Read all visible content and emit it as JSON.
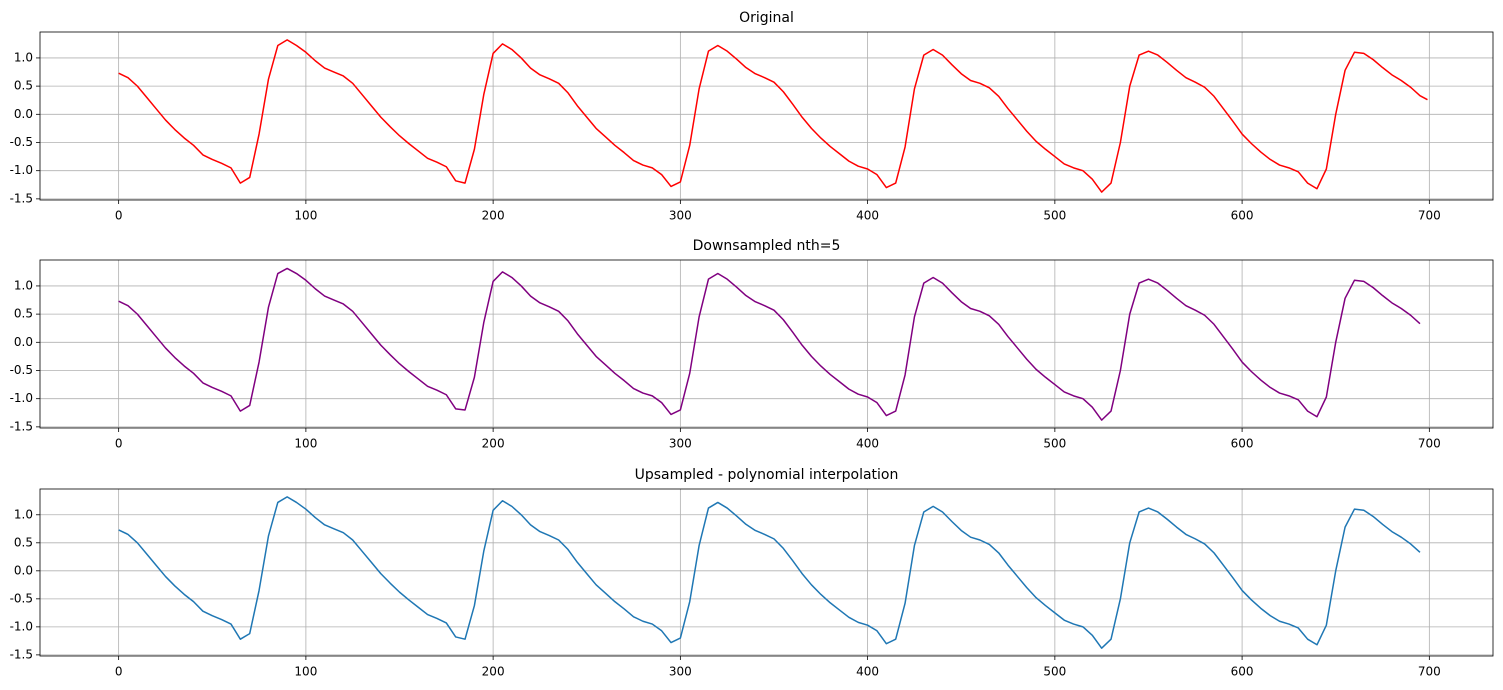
{
  "chart_data": [
    {
      "type": "line",
      "title": "Original",
      "grid": true,
      "xlim": [
        -42,
        734
      ],
      "ylim": [
        -1.52,
        1.46
      ],
      "xticks": [
        0,
        100,
        200,
        300,
        400,
        500,
        600,
        700
      ],
      "yticks": [
        {
          "value": -1.5,
          "label": "-1.5"
        },
        {
          "value": -1,
          "label": "-1.0"
        },
        {
          "value": -0.5,
          "label": "-0.5"
        },
        {
          "value": 0,
          "label": "0.0"
        },
        {
          "value": 0.5,
          "label": "0.5"
        },
        {
          "value": 1,
          "label": "1.0"
        }
      ],
      "x": [
        0,
        5,
        10,
        15,
        20,
        25,
        30,
        35,
        40,
        45,
        50,
        55,
        60,
        65,
        70,
        75,
        80,
        85,
        90,
        95,
        100,
        105,
        110,
        115,
        120,
        125,
        130,
        135,
        140,
        145,
        150,
        155,
        160,
        165,
        170,
        175,
        180,
        185,
        190,
        195,
        200,
        205,
        210,
        215,
        220,
        225,
        230,
        235,
        240,
        245,
        250,
        255,
        260,
        265,
        270,
        275,
        280,
        285,
        290,
        295,
        300,
        305,
        310,
        315,
        320,
        325,
        330,
        335,
        340,
        345,
        350,
        355,
        360,
        365,
        370,
        375,
        380,
        385,
        390,
        395,
        400,
        405,
        410,
        415,
        420,
        425,
        430,
        435,
        440,
        445,
        450,
        455,
        460,
        465,
        470,
        475,
        480,
        485,
        490,
        495,
        500,
        505,
        510,
        515,
        520,
        525,
        530,
        535,
        540,
        545,
        550,
        555,
        560,
        565,
        570,
        575,
        580,
        585,
        590,
        595,
        600,
        605,
        610,
        615,
        620,
        625,
        630,
        635,
        640,
        645,
        650,
        655,
        660,
        665,
        670,
        675,
        680,
        685,
        690,
        695,
        699
      ],
      "series": [
        {
          "name": "Original",
          "color": "#ff0000",
          "values": [
            0.73,
            0.65,
            0.5,
            0.3,
            0.1,
            -0.1,
            -0.27,
            -0.42,
            -0.55,
            -0.72,
            -0.8,
            -0.87,
            -0.95,
            -1.22,
            -1.12,
            -0.35,
            0.62,
            1.22,
            1.32,
            1.22,
            1.1,
            0.95,
            0.82,
            0.75,
            0.68,
            0.55,
            0.35,
            0.15,
            -0.05,
            -0.22,
            -0.38,
            -0.52,
            -0.65,
            -0.78,
            -0.85,
            -0.93,
            -1.18,
            -1.22,
            -0.62,
            0.35,
            1.08,
            1.25,
            1.15,
            1.0,
            0.82,
            0.7,
            0.63,
            0.55,
            0.38,
            0.15,
            -0.05,
            -0.25,
            -0.4,
            -0.55,
            -0.68,
            -0.82,
            -0.9,
            -0.95,
            -1.07,
            -1.28,
            -1.2,
            -0.55,
            0.45,
            1.12,
            1.22,
            1.12,
            0.98,
            0.83,
            0.72,
            0.65,
            0.57,
            0.4,
            0.18,
            -0.05,
            -0.25,
            -0.42,
            -0.57,
            -0.7,
            -0.83,
            -0.92,
            -0.97,
            -1.07,
            -1.3,
            -1.22,
            -0.58,
            0.45,
            1.05,
            1.15,
            1.05,
            0.88,
            0.72,
            0.6,
            0.55,
            0.47,
            0.32,
            0.1,
            -0.1,
            -0.3,
            -0.48,
            -0.62,
            -0.75,
            -0.88,
            -0.95,
            -1.0,
            -1.15,
            -1.38,
            -1.22,
            -0.5,
            0.5,
            1.05,
            1.12,
            1.05,
            0.92,
            0.78,
            0.65,
            0.57,
            0.48,
            0.32,
            0.1,
            -0.12,
            -0.35,
            -0.52,
            -0.67,
            -0.8,
            -0.9,
            -0.95,
            -1.02,
            -1.22,
            -1.32,
            -0.97,
            0.0,
            0.78,
            1.1,
            1.08,
            0.97,
            0.83,
            0.7,
            0.6,
            0.48,
            0.33,
            0.26
          ]
        }
      ]
    },
    {
      "type": "line",
      "title": "Downsampled nth=5",
      "grid": true,
      "xlim": [
        -42,
        734
      ],
      "ylim": [
        -1.52,
        1.46
      ],
      "xticks": [
        0,
        100,
        200,
        300,
        400,
        500,
        600,
        700
      ],
      "yticks": [
        {
          "value": -1.5,
          "label": "-1.5"
        },
        {
          "value": -1,
          "label": "-1.0"
        },
        {
          "value": -0.5,
          "label": "-0.5"
        },
        {
          "value": 0,
          "label": "0.0"
        },
        {
          "value": 0.5,
          "label": "0.5"
        },
        {
          "value": 1,
          "label": "1.0"
        }
      ],
      "x": [
        0,
        5,
        10,
        15,
        20,
        25,
        30,
        35,
        40,
        45,
        50,
        55,
        60,
        65,
        70,
        75,
        80,
        85,
        90,
        95,
        100,
        105,
        110,
        115,
        120,
        125,
        130,
        135,
        140,
        145,
        150,
        155,
        160,
        165,
        170,
        175,
        180,
        185,
        190,
        195,
        200,
        205,
        210,
        215,
        220,
        225,
        230,
        235,
        240,
        245,
        250,
        255,
        260,
        265,
        270,
        275,
        280,
        285,
        290,
        295,
        300,
        305,
        310,
        315,
        320,
        325,
        330,
        335,
        340,
        345,
        350,
        355,
        360,
        365,
        370,
        375,
        380,
        385,
        390,
        395,
        400,
        405,
        410,
        415,
        420,
        425,
        430,
        435,
        440,
        445,
        450,
        455,
        460,
        465,
        470,
        475,
        480,
        485,
        490,
        495,
        500,
        505,
        510,
        515,
        520,
        525,
        530,
        535,
        540,
        545,
        550,
        555,
        560,
        565,
        570,
        575,
        580,
        585,
        590,
        595,
        600,
        605,
        610,
        615,
        620,
        625,
        630,
        635,
        640,
        645,
        650,
        655,
        660,
        665,
        670,
        675,
        680,
        685,
        690,
        695
      ],
      "series": [
        {
          "name": "Downsampled",
          "color": "#800080",
          "values": [
            0.73,
            0.65,
            0.5,
            0.3,
            0.1,
            -0.1,
            -0.27,
            -0.42,
            -0.55,
            -0.72,
            -0.8,
            -0.87,
            -0.95,
            -1.22,
            -1.12,
            -0.35,
            0.62,
            1.22,
            1.31,
            1.22,
            1.1,
            0.95,
            0.82,
            0.75,
            0.68,
            0.55,
            0.35,
            0.15,
            -0.05,
            -0.22,
            -0.38,
            -0.52,
            -0.65,
            -0.78,
            -0.85,
            -0.93,
            -1.18,
            -1.2,
            -0.62,
            0.35,
            1.08,
            1.25,
            1.15,
            1.0,
            0.82,
            0.7,
            0.63,
            0.55,
            0.38,
            0.15,
            -0.05,
            -0.25,
            -0.4,
            -0.55,
            -0.68,
            -0.82,
            -0.9,
            -0.95,
            -1.07,
            -1.28,
            -1.2,
            -0.55,
            0.45,
            1.12,
            1.22,
            1.12,
            0.98,
            0.83,
            0.72,
            0.65,
            0.57,
            0.4,
            0.18,
            -0.05,
            -0.25,
            -0.42,
            -0.57,
            -0.7,
            -0.83,
            -0.92,
            -0.97,
            -1.07,
            -1.3,
            -1.22,
            -0.58,
            0.45,
            1.05,
            1.15,
            1.05,
            0.88,
            0.72,
            0.6,
            0.55,
            0.47,
            0.32,
            0.1,
            -0.1,
            -0.3,
            -0.48,
            -0.62,
            -0.75,
            -0.88,
            -0.95,
            -1.0,
            -1.15,
            -1.38,
            -1.22,
            -0.5,
            0.5,
            1.05,
            1.12,
            1.05,
            0.92,
            0.78,
            0.65,
            0.57,
            0.48,
            0.32,
            0.1,
            -0.12,
            -0.35,
            -0.52,
            -0.67,
            -0.8,
            -0.9,
            -0.95,
            -1.02,
            -1.22,
            -1.32,
            -0.97,
            0.0,
            0.78,
            1.1,
            1.08,
            0.97,
            0.83,
            0.7,
            0.6,
            0.48,
            0.33
          ]
        }
      ]
    },
    {
      "type": "line",
      "title": "Upsampled - polynomial interpolation",
      "grid": true,
      "xlim": [
        -42,
        734
      ],
      "ylim": [
        -1.52,
        1.46
      ],
      "xticks": [
        0,
        100,
        200,
        300,
        400,
        500,
        600,
        700
      ],
      "yticks": [
        {
          "value": -1.5,
          "label": "-1.5"
        },
        {
          "value": -1,
          "label": "-1.0"
        },
        {
          "value": -0.5,
          "label": "-0.5"
        },
        {
          "value": 0,
          "label": "0.0"
        },
        {
          "value": 0.5,
          "label": "0.5"
        },
        {
          "value": 1,
          "label": "1.0"
        }
      ],
      "x": [
        0,
        5,
        10,
        15,
        20,
        25,
        30,
        35,
        40,
        45,
        50,
        55,
        60,
        65,
        70,
        75,
        80,
        85,
        90,
        95,
        100,
        105,
        110,
        115,
        120,
        125,
        130,
        135,
        140,
        145,
        150,
        155,
        160,
        165,
        170,
        175,
        180,
        185,
        190,
        195,
        200,
        205,
        210,
        215,
        220,
        225,
        230,
        235,
        240,
        245,
        250,
        255,
        260,
        265,
        270,
        275,
        280,
        285,
        290,
        295,
        300,
        305,
        310,
        315,
        320,
        325,
        330,
        335,
        340,
        345,
        350,
        355,
        360,
        365,
        370,
        375,
        380,
        385,
        390,
        395,
        400,
        405,
        410,
        415,
        420,
        425,
        430,
        435,
        440,
        445,
        450,
        455,
        460,
        465,
        470,
        475,
        480,
        485,
        490,
        495,
        500,
        505,
        510,
        515,
        520,
        525,
        530,
        535,
        540,
        545,
        550,
        555,
        560,
        565,
        570,
        575,
        580,
        585,
        590,
        595,
        600,
        605,
        610,
        615,
        620,
        625,
        630,
        635,
        640,
        645,
        650,
        655,
        660,
        665,
        670,
        675,
        680,
        685,
        690,
        695
      ],
      "series": [
        {
          "name": "Upsampled",
          "color": "#1f77b4",
          "values": [
            0.73,
            0.65,
            0.5,
            0.3,
            0.1,
            -0.1,
            -0.27,
            -0.42,
            -0.55,
            -0.72,
            -0.8,
            -0.87,
            -0.95,
            -1.22,
            -1.12,
            -0.35,
            0.62,
            1.22,
            1.32,
            1.22,
            1.1,
            0.95,
            0.82,
            0.75,
            0.68,
            0.55,
            0.35,
            0.15,
            -0.05,
            -0.22,
            -0.38,
            -0.52,
            -0.65,
            -0.78,
            -0.85,
            -0.93,
            -1.18,
            -1.22,
            -0.62,
            0.35,
            1.08,
            1.25,
            1.15,
            1.0,
            0.82,
            0.7,
            0.63,
            0.55,
            0.38,
            0.15,
            -0.05,
            -0.25,
            -0.4,
            -0.55,
            -0.68,
            -0.82,
            -0.9,
            -0.95,
            -1.07,
            -1.28,
            -1.2,
            -0.55,
            0.45,
            1.12,
            1.22,
            1.12,
            0.98,
            0.83,
            0.72,
            0.65,
            0.57,
            0.4,
            0.18,
            -0.05,
            -0.25,
            -0.42,
            -0.57,
            -0.7,
            -0.83,
            -0.92,
            -0.97,
            -1.07,
            -1.3,
            -1.22,
            -0.58,
            0.45,
            1.05,
            1.15,
            1.05,
            0.88,
            0.72,
            0.6,
            0.55,
            0.47,
            0.32,
            0.1,
            -0.1,
            -0.3,
            -0.48,
            -0.62,
            -0.75,
            -0.88,
            -0.95,
            -1.0,
            -1.15,
            -1.38,
            -1.22,
            -0.5,
            0.5,
            1.05,
            1.12,
            1.05,
            0.92,
            0.78,
            0.65,
            0.57,
            0.48,
            0.32,
            0.1,
            -0.12,
            -0.35,
            -0.52,
            -0.67,
            -0.8,
            -0.9,
            -0.95,
            -1.02,
            -1.22,
            -1.32,
            -0.97,
            0.0,
            0.78,
            1.1,
            1.08,
            0.97,
            0.83,
            0.7,
            0.6,
            0.48,
            0.33
          ]
        }
      ]
    }
  ]
}
